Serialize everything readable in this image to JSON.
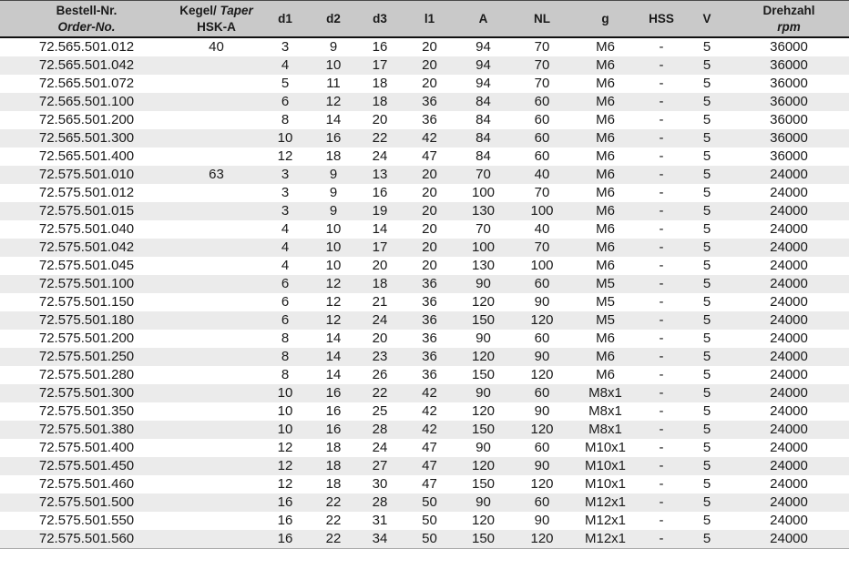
{
  "header": {
    "order_no": {
      "line1": "Bestell-Nr.",
      "line2": "Order-No."
    },
    "taper": {
      "line1_a": "Kegel/",
      "line1_b": "Taper",
      "line2": "HSK-A"
    },
    "d1": "d1",
    "d2": "d2",
    "d3": "d3",
    "l1": "l1",
    "A": "A",
    "NL": "NL",
    "g": "g",
    "HSS": "HSS",
    "V": "V",
    "speed": {
      "line1": "Drehzahl",
      "line2": "rpm"
    }
  },
  "column_keys": [
    "order-no",
    "taper",
    "d1",
    "d2",
    "d3",
    "l1",
    "A",
    "NL",
    "g",
    "HSS",
    "V",
    "rpm"
  ],
  "colors": {
    "header_bg": "#c9c9c9",
    "stripe_bg": "#ebebeb",
    "text": "#1a1a1a"
  },
  "rows": [
    [
      "72.565.501.012",
      "40",
      "3",
      "9",
      "16",
      "20",
      "94",
      "70",
      "M6",
      "-",
      "5",
      "36000"
    ],
    [
      "72.565.501.042",
      "",
      "4",
      "10",
      "17",
      "20",
      "94",
      "70",
      "M6",
      "-",
      "5",
      "36000"
    ],
    [
      "72.565.501.072",
      "",
      "5",
      "11",
      "18",
      "20",
      "94",
      "70",
      "M6",
      "-",
      "5",
      "36000"
    ],
    [
      "72.565.501.100",
      "",
      "6",
      "12",
      "18",
      "36",
      "84",
      "60",
      "M6",
      "-",
      "5",
      "36000"
    ],
    [
      "72.565.501.200",
      "",
      "8",
      "14",
      "20",
      "36",
      "84",
      "60",
      "M6",
      "-",
      "5",
      "36000"
    ],
    [
      "72.565.501.300",
      "",
      "10",
      "16",
      "22",
      "42",
      "84",
      "60",
      "M6",
      "-",
      "5",
      "36000"
    ],
    [
      "72.565.501.400",
      "",
      "12",
      "18",
      "24",
      "47",
      "84",
      "60",
      "M6",
      "-",
      "5",
      "36000"
    ],
    [
      "72.575.501.010",
      "63",
      "3",
      "9",
      "13",
      "20",
      "70",
      "40",
      "M6",
      "-",
      "5",
      "24000"
    ],
    [
      "72.575.501.012",
      "",
      "3",
      "9",
      "16",
      "20",
      "100",
      "70",
      "M6",
      "-",
      "5",
      "24000"
    ],
    [
      "72.575.501.015",
      "",
      "3",
      "9",
      "19",
      "20",
      "130",
      "100",
      "M6",
      "-",
      "5",
      "24000"
    ],
    [
      "72.575.501.040",
      "",
      "4",
      "10",
      "14",
      "20",
      "70",
      "40",
      "M6",
      "-",
      "5",
      "24000"
    ],
    [
      "72.575.501.042",
      "",
      "4",
      "10",
      "17",
      "20",
      "100",
      "70",
      "M6",
      "-",
      "5",
      "24000"
    ],
    [
      "72.575.501.045",
      "",
      "4",
      "10",
      "20",
      "20",
      "130",
      "100",
      "M6",
      "-",
      "5",
      "24000"
    ],
    [
      "72.575.501.100",
      "",
      "6",
      "12",
      "18",
      "36",
      "90",
      "60",
      "M5",
      "-",
      "5",
      "24000"
    ],
    [
      "72.575.501.150",
      "",
      "6",
      "12",
      "21",
      "36",
      "120",
      "90",
      "M5",
      "-",
      "5",
      "24000"
    ],
    [
      "72.575.501.180",
      "",
      "6",
      "12",
      "24",
      "36",
      "150",
      "120",
      "M5",
      "-",
      "5",
      "24000"
    ],
    [
      "72.575.501.200",
      "",
      "8",
      "14",
      "20",
      "36",
      "90",
      "60",
      "M6",
      "-",
      "5",
      "24000"
    ],
    [
      "72.575.501.250",
      "",
      "8",
      "14",
      "23",
      "36",
      "120",
      "90",
      "M6",
      "-",
      "5",
      "24000"
    ],
    [
      "72.575.501.280",
      "",
      "8",
      "14",
      "26",
      "36",
      "150",
      "120",
      "M6",
      "-",
      "5",
      "24000"
    ],
    [
      "72.575.501.300",
      "",
      "10",
      "16",
      "22",
      "42",
      "90",
      "60",
      "M8x1",
      "-",
      "5",
      "24000"
    ],
    [
      "72.575.501.350",
      "",
      "10",
      "16",
      "25",
      "42",
      "120",
      "90",
      "M8x1",
      "-",
      "5",
      "24000"
    ],
    [
      "72.575.501.380",
      "",
      "10",
      "16",
      "28",
      "42",
      "150",
      "120",
      "M8x1",
      "-",
      "5",
      "24000"
    ],
    [
      "72.575.501.400",
      "",
      "12",
      "18",
      "24",
      "47",
      "90",
      "60",
      "M10x1",
      "-",
      "5",
      "24000"
    ],
    [
      "72.575.501.450",
      "",
      "12",
      "18",
      "27",
      "47",
      "120",
      "90",
      "M10x1",
      "-",
      "5",
      "24000"
    ],
    [
      "72.575.501.460",
      "",
      "12",
      "18",
      "30",
      "47",
      "150",
      "120",
      "M10x1",
      "-",
      "5",
      "24000"
    ],
    [
      "72.575.501.500",
      "",
      "16",
      "22",
      "28",
      "50",
      "90",
      "60",
      "M12x1",
      "-",
      "5",
      "24000"
    ],
    [
      "72.575.501.550",
      "",
      "16",
      "22",
      "31",
      "50",
      "120",
      "90",
      "M12x1",
      "-",
      "5",
      "24000"
    ],
    [
      "72.575.501.560",
      "",
      "16",
      "22",
      "34",
      "50",
      "150",
      "120",
      "M12x1",
      "-",
      "5",
      "24000"
    ]
  ]
}
